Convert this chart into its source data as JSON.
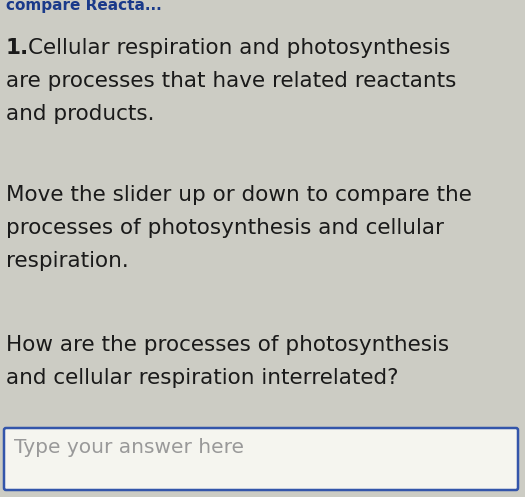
{
  "background_color": "#ccccc4",
  "header_text": "compare Reacta...",
  "header_color": "#1a3a8a",
  "header_fontsize": 11,
  "paragraph1_label": "1.",
  "paragraph1_line1": "Cellular respiration and photosynthesis",
  "paragraph1_line2": "are processes that have related reactants",
  "paragraph1_line3": "and products.",
  "paragraph2_line1": "Move the slider up or down to compare the",
  "paragraph2_line2": "processes of photosynthesis and cellular",
  "paragraph2_line3": "respiration.",
  "paragraph3_line1": "How are the processes of photosynthesis",
  "paragraph3_line2": "and cellular respiration interrelated?",
  "input_placeholder": "Type your answer here",
  "text_color": "#1a1a1a",
  "input_box_color": "#f5f5ef",
  "input_border_color": "#3355aa",
  "body_fontsize": 15.5,
  "fig_width": 5.25,
  "fig_height": 4.97,
  "dpi": 100
}
